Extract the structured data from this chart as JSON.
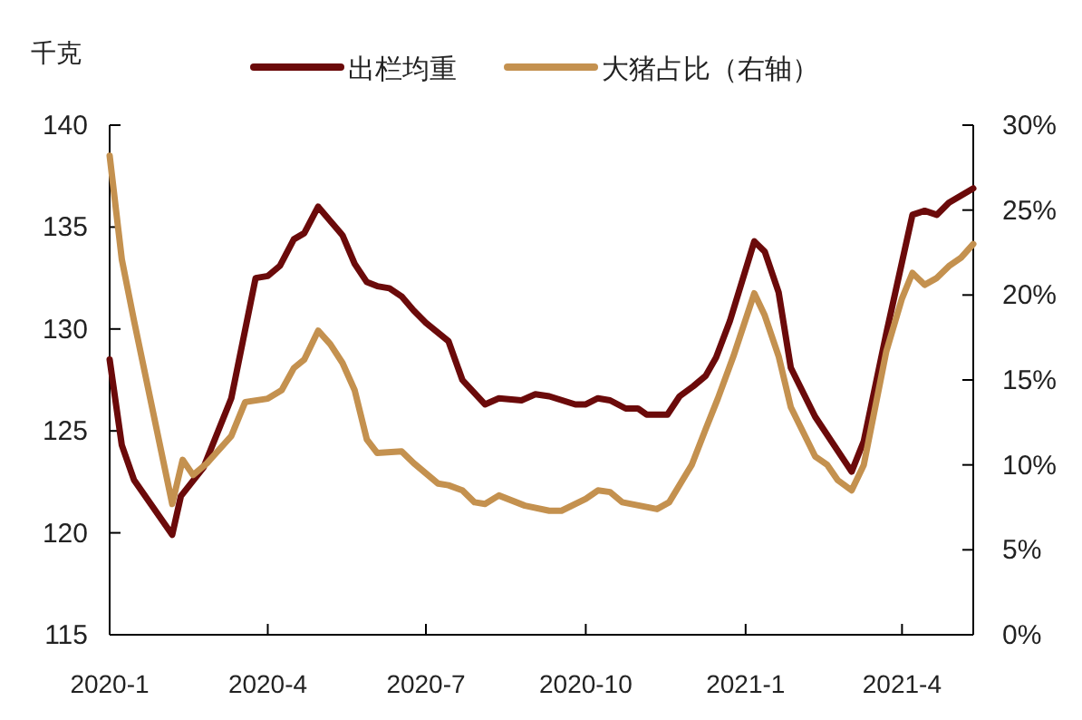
{
  "chart_data": {
    "type": "line",
    "ylabel": "千克",
    "legend": "top",
    "grid": false,
    "marker": "none",
    "line_style": "solid",
    "xlim": [
      "2020-01-01",
      "2021-05-12"
    ],
    "xticks": [
      {
        "value": "2020-01-01",
        "label": "2020-1"
      },
      {
        "value": "2020-04-01",
        "label": "2020-4"
      },
      {
        "value": "2020-07-01",
        "label": "2020-7"
      },
      {
        "value": "2020-10-01",
        "label": "2020-10"
      },
      {
        "value": "2021-01-01",
        "label": "2021-1"
      },
      {
        "value": "2021-04-01",
        "label": "2021-4"
      }
    ],
    "ylim": [
      115,
      140
    ],
    "yticks": [
      115,
      120,
      125,
      130,
      135,
      140
    ],
    "y2lim": [
      0,
      30
    ],
    "y2ticks": [
      {
        "value": 0,
        "label": "0%"
      },
      {
        "value": 5,
        "label": "5%"
      },
      {
        "value": 10,
        "label": "10%"
      },
      {
        "value": 15,
        "label": "15%"
      },
      {
        "value": 20,
        "label": "20%"
      },
      {
        "value": 25,
        "label": "25%"
      },
      {
        "value": 30,
        "label": "30%"
      }
    ],
    "series": [
      {
        "name": "出栏均重",
        "color": "#6b0a0a",
        "x": [
          "2020-01-01",
          "2020-01-08",
          "2020-01-15",
          "2020-02-06",
          "2020-02-11",
          "2020-02-24",
          "2020-03-11",
          "2020-03-25",
          "2020-04-01",
          "2020-04-08",
          "2020-04-16",
          "2020-04-22",
          "2020-04-30",
          "2020-05-07",
          "2020-05-14",
          "2020-05-21",
          "2020-05-28",
          "2020-06-03",
          "2020-06-10",
          "2020-06-17",
          "2020-06-24",
          "2020-07-01",
          "2020-07-14",
          "2020-07-22",
          "2020-08-04",
          "2020-08-12",
          "2020-08-25",
          "2020-09-02",
          "2020-09-10",
          "2020-09-25",
          "2020-10-01",
          "2020-10-08",
          "2020-10-15",
          "2020-10-24",
          "2020-10-31",
          "2020-11-05",
          "2020-11-17",
          "2020-11-24",
          "2020-12-02",
          "2020-12-09",
          "2020-12-15",
          "2020-12-23",
          "2021-01-06",
          "2021-01-12",
          "2021-01-20",
          "2021-01-27",
          "2021-02-10",
          "2021-03-03",
          "2021-03-10",
          "2021-03-23",
          "2021-04-07",
          "2021-04-14",
          "2021-04-21",
          "2021-04-28",
          "2021-05-12"
        ],
        "values": [
          128.5,
          124.3,
          122.6,
          119.9,
          121.8,
          123.2,
          126.6,
          132.5,
          132.6,
          133.1,
          134.4,
          134.7,
          136.0,
          135.3,
          134.6,
          133.2,
          132.3,
          132.1,
          132.0,
          131.6,
          130.9,
          130.3,
          129.4,
          127.5,
          126.3,
          126.6,
          126.5,
          126.8,
          126.7,
          126.3,
          126.3,
          126.6,
          126.5,
          126.1,
          126.1,
          125.8,
          125.8,
          126.7,
          127.2,
          127.7,
          128.6,
          130.4,
          134.3,
          133.8,
          131.8,
          128.1,
          125.7,
          123.0,
          124.5,
          129.8,
          135.6,
          135.8,
          135.6,
          136.2,
          136.9
        ]
      },
      {
        "name": "大猪占比（右轴）",
        "color": "#c4914f",
        "axis": "y2",
        "x": [
          "2020-01-01",
          "2020-01-08",
          "2020-01-15",
          "2020-02-06",
          "2020-02-12",
          "2020-02-18",
          "2020-02-26",
          "2020-03-11",
          "2020-03-19",
          "2020-04-01",
          "2020-04-09",
          "2020-04-16",
          "2020-04-22",
          "2020-04-30",
          "2020-05-07",
          "2020-05-14",
          "2020-05-21",
          "2020-05-28",
          "2020-06-03",
          "2020-06-17",
          "2020-06-24",
          "2020-07-08",
          "2020-07-14",
          "2020-07-22",
          "2020-07-29",
          "2020-08-04",
          "2020-08-12",
          "2020-08-27",
          "2020-09-10",
          "2020-09-17",
          "2020-10-01",
          "2020-10-08",
          "2020-10-15",
          "2020-10-22",
          "2020-11-11",
          "2020-11-18",
          "2020-12-01",
          "2020-12-09",
          "2020-12-16",
          "2020-12-25",
          "2021-01-06",
          "2021-01-12",
          "2021-01-20",
          "2021-01-27",
          "2021-02-10",
          "2021-02-17",
          "2021-02-23",
          "2021-03-03",
          "2021-03-10",
          "2021-03-23",
          "2021-04-01",
          "2021-04-07",
          "2021-04-14",
          "2021-04-21",
          "2021-04-28",
          "2021-05-05",
          "2021-05-12"
        ],
        "values": [
          28.2,
          22.1,
          18.5,
          7.7,
          10.3,
          9.4,
          10.1,
          11.7,
          13.7,
          13.9,
          14.4,
          15.7,
          16.2,
          17.9,
          17.1,
          16.0,
          14.4,
          11.5,
          10.7,
          10.8,
          10.1,
          8.9,
          8.8,
          8.5,
          7.8,
          7.7,
          8.2,
          7.6,
          7.3,
          7.3,
          8.0,
          8.5,
          8.4,
          7.8,
          7.4,
          7.8,
          10.0,
          12.1,
          13.9,
          16.4,
          20.1,
          18.8,
          16.4,
          13.4,
          10.5,
          10.0,
          9.1,
          8.5,
          10.0,
          16.7,
          19.8,
          21.3,
          20.6,
          21.0,
          21.7,
          22.2,
          23.0
        ]
      }
    ]
  }
}
